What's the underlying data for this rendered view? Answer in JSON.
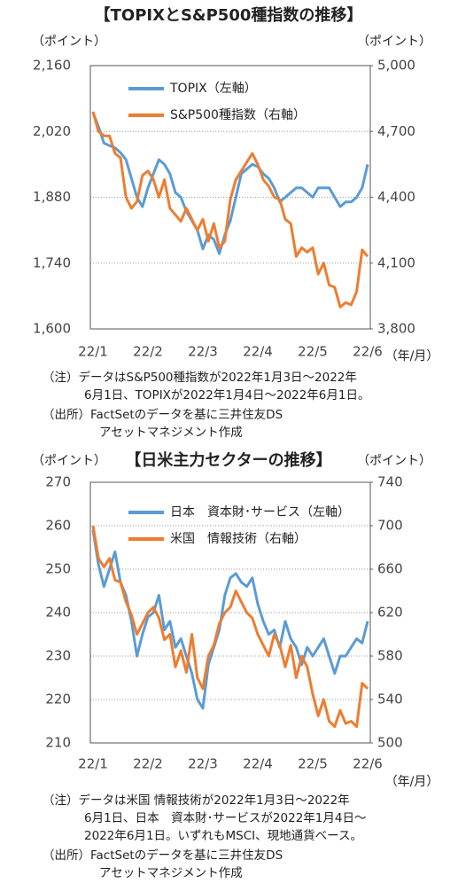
{
  "chart_data": [
    {
      "type": "line",
      "title": "【TOPIXとS&P500種指数の推移】",
      "y_label": "（ポイント）",
      "y2_label": "（ポイント）",
      "x_label": "（年/月）",
      "categories": [
        "22/1",
        null,
        null,
        null,
        null,
        null,
        null,
        null,
        null,
        null,
        "22/2",
        null,
        null,
        null,
        null,
        null,
        null,
        null,
        null,
        null,
        "22/3",
        null,
        null,
        null,
        null,
        null,
        null,
        null,
        null,
        null,
        "22/4",
        null,
        null,
        null,
        null,
        null,
        null,
        null,
        null,
        null,
        "22/5",
        null,
        null,
        null,
        null,
        null,
        null,
        null,
        null,
        null,
        "22/6"
      ],
      "series": [
        {
          "name": "TOPIX（左軸）",
          "color": "#5b9bd5",
          "values": [
            2060,
            2030,
            1995,
            1990,
            1985,
            1975,
            1960,
            1920,
            1880,
            1860,
            1900,
            1930,
            1960,
            1950,
            1930,
            1890,
            1880,
            1850,
            1830,
            1810,
            1770,
            1800,
            1790,
            1760,
            1800,
            1830,
            1880,
            1930,
            1940,
            1950,
            1945,
            1930,
            1920,
            1900,
            1870,
            1880,
            1890,
            1900,
            1900,
            1890,
            1880,
            1900,
            1900,
            1900,
            1880,
            1860,
            1870,
            1870,
            1880,
            1900,
            1950
          ]
        },
        {
          "name": "S&P500種指数（右軸）",
          "color": "#ed7d31",
          "axis": "y2",
          "values": [
            4790,
            4700,
            4680,
            4680,
            4600,
            4580,
            4400,
            4350,
            4380,
            4500,
            4520,
            4480,
            4400,
            4480,
            4350,
            4320,
            4290,
            4350,
            4300,
            4250,
            4300,
            4200,
            4280,
            4170,
            4200,
            4390,
            4480,
            4520,
            4560,
            4600,
            4550,
            4480,
            4450,
            4400,
            4390,
            4300,
            4280,
            4130,
            4170,
            4150,
            4170,
            4050,
            4100,
            4000,
            3990,
            3900,
            3920,
            3910,
            3970,
            4160,
            4130
          ]
        }
      ],
      "ylim": [
        1600,
        2160
      ],
      "yticks": [
        {
          "value": 1600,
          "label": "1,600"
        },
        {
          "value": 1740,
          "label": "1,740"
        },
        {
          "value": 1880,
          "label": "1,880"
        },
        {
          "value": 2020,
          "label": "2,020"
        },
        {
          "value": 2160,
          "label": "2,160"
        }
      ],
      "y2lim": [
        3800,
        5000
      ],
      "y2ticks": [
        {
          "value": 3800,
          "label": "3,800"
        },
        {
          "value": 4100,
          "label": "4,100"
        },
        {
          "value": 4400,
          "label": "4,400"
        },
        {
          "value": 4700,
          "label": "4,700"
        },
        {
          "value": 5000,
          "label": "5,000"
        }
      ],
      "grid": true,
      "notes": [
        "（注）データはS&P500種指数が2022年1月3日～2022年",
        "6月1日、TOPIXが2022年1月4日～2022年6月1日。",
        "（出所）FactSetのデータを基に三井住友DS",
        "アセットマネジメント作成"
      ]
    },
    {
      "type": "line",
      "title": "【日米主力セクターの推移】",
      "y_label": "（ポイント）",
      "y2_label": "（ポイント）",
      "x_label": "（年/月）",
      "categories": [
        "22/1",
        null,
        null,
        null,
        null,
        null,
        null,
        null,
        null,
        null,
        "22/2",
        null,
        null,
        null,
        null,
        null,
        null,
        null,
        null,
        null,
        "22/3",
        null,
        null,
        null,
        null,
        null,
        null,
        null,
        null,
        null,
        "22/4",
        null,
        null,
        null,
        null,
        null,
        null,
        null,
        null,
        null,
        "22/5",
        null,
        null,
        null,
        null,
        null,
        null,
        null,
        null,
        null,
        "22/6"
      ],
      "series": [
        {
          "name": "日本　資本財･サービス（左軸）",
          "color": "#5b9bd5",
          "values": [
            259,
            251,
            246,
            250,
            254,
            247,
            244,
            238,
            230,
            235,
            239,
            240,
            244,
            236,
            238,
            232,
            234,
            230,
            226,
            220,
            218,
            228,
            232,
            236,
            244,
            248,
            249,
            247,
            246,
            248,
            242,
            238,
            235,
            236,
            232,
            238,
            234,
            232,
            228,
            232,
            230,
            232,
            234,
            230,
            226,
            230,
            230,
            232,
            234,
            233,
            238
          ]
        },
        {
          "name": "米国　情報技術（右軸）",
          "color": "#ed7d31",
          "axis": "y2",
          "values": [
            700,
            670,
            662,
            670,
            650,
            648,
            630,
            618,
            600,
            610,
            620,
            625,
            615,
            595,
            600,
            570,
            585,
            565,
            600,
            560,
            550,
            580,
            590,
            610,
            620,
            625,
            640,
            630,
            620,
            615,
            600,
            590,
            580,
            600,
            590,
            570,
            590,
            560,
            580,
            570,
            545,
            525,
            540,
            520,
            515,
            530,
            518,
            520,
            515,
            555,
            550
          ]
        }
      ],
      "ylim": [
        210,
        270
      ],
      "yticks": [
        210,
        220,
        230,
        240,
        250,
        260,
        270
      ],
      "y2lim": [
        500,
        740
      ],
      "y2ticks": [
        500,
        540,
        580,
        620,
        660,
        700,
        740
      ],
      "grid": true,
      "notes": [
        "（注）データは米国 情報技術が2022年1月3日～2022年",
        "6月1日、日本　資本財･サービスが2022年1月4日～",
        "2022年6月1日。いずれもMSCI、現地通貨ベース。",
        "（出所）FactSetのデータを基に三井住友DS",
        "アセットマネジメント作成"
      ]
    }
  ]
}
